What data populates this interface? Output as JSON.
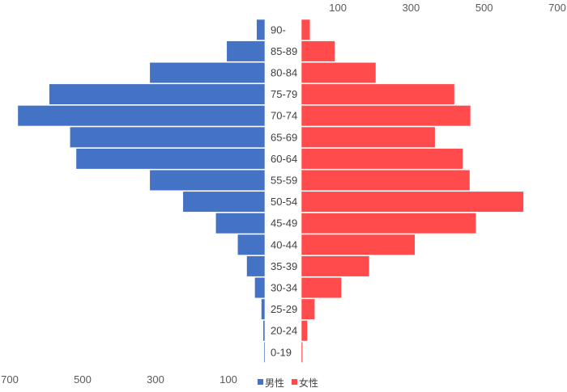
{
  "chart_data": {
    "type": "bar",
    "orientation": "horizontal",
    "layout": "population-pyramid",
    "categories": [
      "90-",
      "85-89",
      "80-84",
      "75-79",
      "70-74",
      "65-69",
      "60-64",
      "55-59",
      "50-54",
      "45-49",
      "40-44",
      "35-39",
      "30-34",
      "25-29",
      "20-24",
      "0-19"
    ],
    "series": [
      {
        "name": "男性",
        "color": "#4472c4",
        "side": "left",
        "values": [
          23,
          105,
          316,
          592,
          678,
          535,
          518,
          316,
          225,
          135,
          75,
          50,
          28,
          10,
          5,
          3
        ]
      },
      {
        "name": "女性",
        "color": "#ff4b4b",
        "side": "right",
        "values": [
          24,
          92,
          204,
          419,
          463,
          366,
          442,
          461,
          608,
          478,
          311,
          186,
          110,
          37,
          17,
          4
        ]
      }
    ],
    "left_axis": {
      "range": [
        700,
        0
      ],
      "tick_labels": [
        "700",
        "500",
        "300",
        "100"
      ],
      "position": "bottom"
    },
    "right_axis": {
      "range": [
        0,
        700
      ],
      "tick_labels": [
        "100",
        "300",
        "500",
        "700"
      ],
      "position": "top"
    },
    "legend": {
      "position": "bottom",
      "entries": [
        "男性",
        "女性"
      ]
    },
    "grid": false
  }
}
